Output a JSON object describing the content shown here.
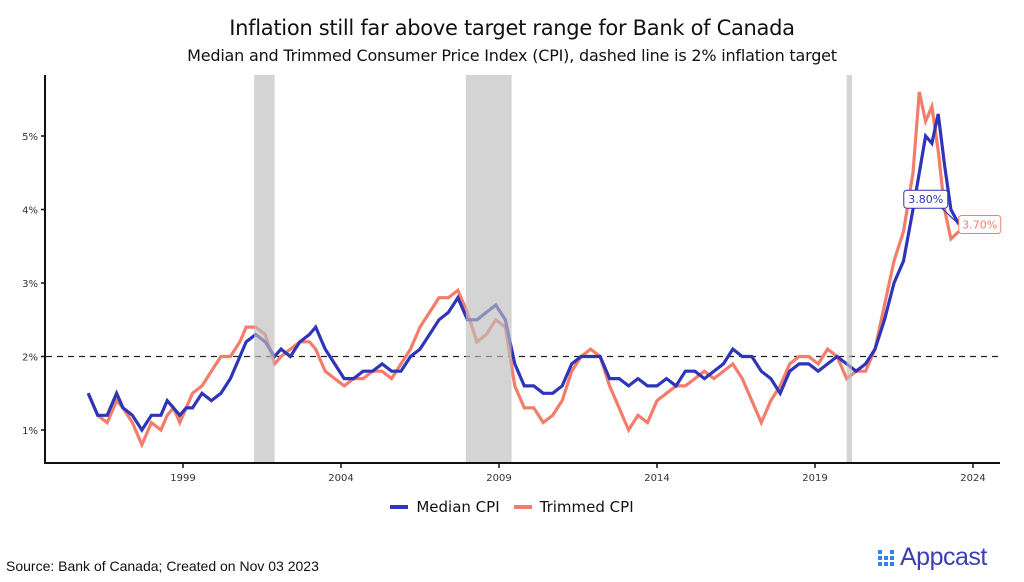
{
  "chart_data": {
    "type": "line",
    "title": "Inflation still far above target range for Bank of Canada",
    "subtitle": "Median and Trimmed Consumer Price Index (CPI), dashed line is 2% inflation target",
    "xlabel": "",
    "ylabel": "",
    "xlim": [
      1995.6,
      2025.0
    ],
    "ylim": [
      0.55,
      5.85
    ],
    "x_ticks": [
      1999,
      2004,
      2009,
      2014,
      2019,
      2024
    ],
    "x_tick_labels": [
      "1999",
      "2004",
      "2009",
      "2014",
      "2019",
      "2024"
    ],
    "y_ticks": [
      1,
      2,
      3,
      4,
      5
    ],
    "y_tick_labels": [
      "1%",
      "2%",
      "3%",
      "4%",
      "5%"
    ],
    "grid": false,
    "legend_position": "bottom",
    "reference_line": {
      "y": 2.0,
      "style": "dashed",
      "label": "2% inflation target"
    },
    "shaded_periods": [
      {
        "start": 2001.25,
        "end": 2001.9
      },
      {
        "start": 2007.95,
        "end": 2009.4
      },
      {
        "start": 2020.0,
        "end": 2020.17
      }
    ],
    "series": [
      {
        "name": "Median CPI",
        "color": "#2e35b8",
        "x": [
          1996.0,
          1996.3,
          1996.6,
          1996.9,
          1997.1,
          1997.4,
          1997.7,
          1998.0,
          1998.3,
          1998.5,
          1998.7,
          1998.9,
          1999.1,
          1999.3,
          1999.6,
          1999.9,
          2000.2,
          2000.5,
          2000.8,
          2001.0,
          2001.3,
          2001.6,
          2001.9,
          2002.1,
          2002.4,
          2002.7,
          2003.0,
          2003.2,
          2003.5,
          2003.8,
          2004.1,
          2004.4,
          2004.7,
          2005.0,
          2005.3,
          2005.6,
          2005.9,
          2006.2,
          2006.5,
          2006.8,
          2007.1,
          2007.4,
          2007.7,
          2008.0,
          2008.3,
          2008.6,
          2008.9,
          2009.2,
          2009.5,
          2009.8,
          2010.1,
          2010.4,
          2010.7,
          2011.0,
          2011.3,
          2011.6,
          2011.9,
          2012.2,
          2012.5,
          2012.8,
          2013.1,
          2013.4,
          2013.7,
          2014.0,
          2014.3,
          2014.6,
          2014.9,
          2015.2,
          2015.5,
          2015.8,
          2016.1,
          2016.4,
          2016.7,
          2017.0,
          2017.3,
          2017.6,
          2017.9,
          2018.2,
          2018.5,
          2018.8,
          2019.1,
          2019.4,
          2019.7,
          2020.0,
          2020.3,
          2020.6,
          2020.9,
          2021.2,
          2021.5,
          2021.8,
          2022.1,
          2022.3,
          2022.5,
          2022.7,
          2022.9,
          2023.1,
          2023.3,
          2023.55
        ],
        "y": [
          1.5,
          1.2,
          1.2,
          1.5,
          1.3,
          1.2,
          1.0,
          1.2,
          1.2,
          1.4,
          1.3,
          1.2,
          1.3,
          1.3,
          1.5,
          1.4,
          1.5,
          1.7,
          2.0,
          2.2,
          2.3,
          2.2,
          2.0,
          2.1,
          2.0,
          2.2,
          2.3,
          2.4,
          2.1,
          1.9,
          1.7,
          1.7,
          1.8,
          1.8,
          1.9,
          1.8,
          1.8,
          2.0,
          2.1,
          2.3,
          2.5,
          2.6,
          2.8,
          2.5,
          2.5,
          2.6,
          2.7,
          2.5,
          1.9,
          1.6,
          1.6,
          1.5,
          1.5,
          1.6,
          1.9,
          2.0,
          2.0,
          2.0,
          1.7,
          1.7,
          1.6,
          1.7,
          1.6,
          1.6,
          1.7,
          1.6,
          1.8,
          1.8,
          1.7,
          1.8,
          1.9,
          2.1,
          2.0,
          2.0,
          1.8,
          1.7,
          1.5,
          1.8,
          1.9,
          1.9,
          1.8,
          1.9,
          2.0,
          1.9,
          1.8,
          1.9,
          2.1,
          2.5,
          3.0,
          3.3,
          4.0,
          4.5,
          5.0,
          4.9,
          5.3,
          4.6,
          4.0,
          3.8
        ]
      },
      {
        "name": "Trimmed CPI",
        "color": "#f47c6b",
        "x": [
          1996.0,
          1996.3,
          1996.6,
          1996.9,
          1997.1,
          1997.4,
          1997.7,
          1998.0,
          1998.3,
          1998.5,
          1998.7,
          1998.9,
          1999.1,
          1999.3,
          1999.6,
          1999.9,
          2000.2,
          2000.5,
          2000.8,
          2001.0,
          2001.3,
          2001.6,
          2001.9,
          2002.1,
          2002.4,
          2002.7,
          2003.0,
          2003.2,
          2003.5,
          2003.8,
          2004.1,
          2004.4,
          2004.7,
          2005.0,
          2005.3,
          2005.6,
          2005.9,
          2006.2,
          2006.5,
          2006.8,
          2007.1,
          2007.4,
          2007.7,
          2008.0,
          2008.3,
          2008.6,
          2008.9,
          2009.2,
          2009.5,
          2009.8,
          2010.1,
          2010.4,
          2010.7,
          2011.0,
          2011.3,
          2011.6,
          2011.9,
          2012.2,
          2012.5,
          2012.8,
          2013.1,
          2013.4,
          2013.7,
          2014.0,
          2014.3,
          2014.6,
          2014.9,
          2015.2,
          2015.5,
          2015.8,
          2016.1,
          2016.4,
          2016.7,
          2017.0,
          2017.3,
          2017.6,
          2017.9,
          2018.2,
          2018.5,
          2018.8,
          2019.1,
          2019.4,
          2019.7,
          2020.0,
          2020.3,
          2020.6,
          2020.9,
          2021.2,
          2021.5,
          2021.8,
          2022.1,
          2022.3,
          2022.5,
          2022.7,
          2022.9,
          2023.1,
          2023.3,
          2023.55
        ],
        "y": [
          1.5,
          1.2,
          1.1,
          1.4,
          1.3,
          1.1,
          0.8,
          1.1,
          1.0,
          1.2,
          1.3,
          1.1,
          1.3,
          1.5,
          1.6,
          1.8,
          2.0,
          2.0,
          2.2,
          2.4,
          2.4,
          2.3,
          1.9,
          2.0,
          2.1,
          2.2,
          2.2,
          2.1,
          1.8,
          1.7,
          1.6,
          1.7,
          1.7,
          1.8,
          1.8,
          1.7,
          1.9,
          2.1,
          2.4,
          2.6,
          2.8,
          2.8,
          2.9,
          2.6,
          2.2,
          2.3,
          2.5,
          2.4,
          1.6,
          1.3,
          1.3,
          1.1,
          1.2,
          1.4,
          1.8,
          2.0,
          2.1,
          2.0,
          1.6,
          1.3,
          1.0,
          1.2,
          1.1,
          1.4,
          1.5,
          1.6,
          1.6,
          1.7,
          1.8,
          1.7,
          1.8,
          1.9,
          1.7,
          1.4,
          1.1,
          1.4,
          1.6,
          1.9,
          2.0,
          2.0,
          1.9,
          2.1,
          2.0,
          1.7,
          1.8,
          1.8,
          2.1,
          2.7,
          3.3,
          3.7,
          4.5,
          5.6,
          5.2,
          5.4,
          4.8,
          4.0,
          3.6,
          3.7
        ]
      }
    ],
    "annotations": [
      {
        "text": "3.80%",
        "series": "Median CPI",
        "x": 2023.55,
        "y": 3.8
      },
      {
        "text": "3.70%",
        "series": "Trimmed CPI",
        "x": 2023.55,
        "y": 3.7
      }
    ]
  },
  "legend": {
    "items": [
      {
        "label": "Median CPI",
        "color": "#2e35b8"
      },
      {
        "label": "Trimmed CPI",
        "color": "#f47c6b"
      }
    ]
  },
  "footer": {
    "source": "Source: Bank of Canada; Created on Nov 03 2023",
    "brand": "Appcast"
  }
}
